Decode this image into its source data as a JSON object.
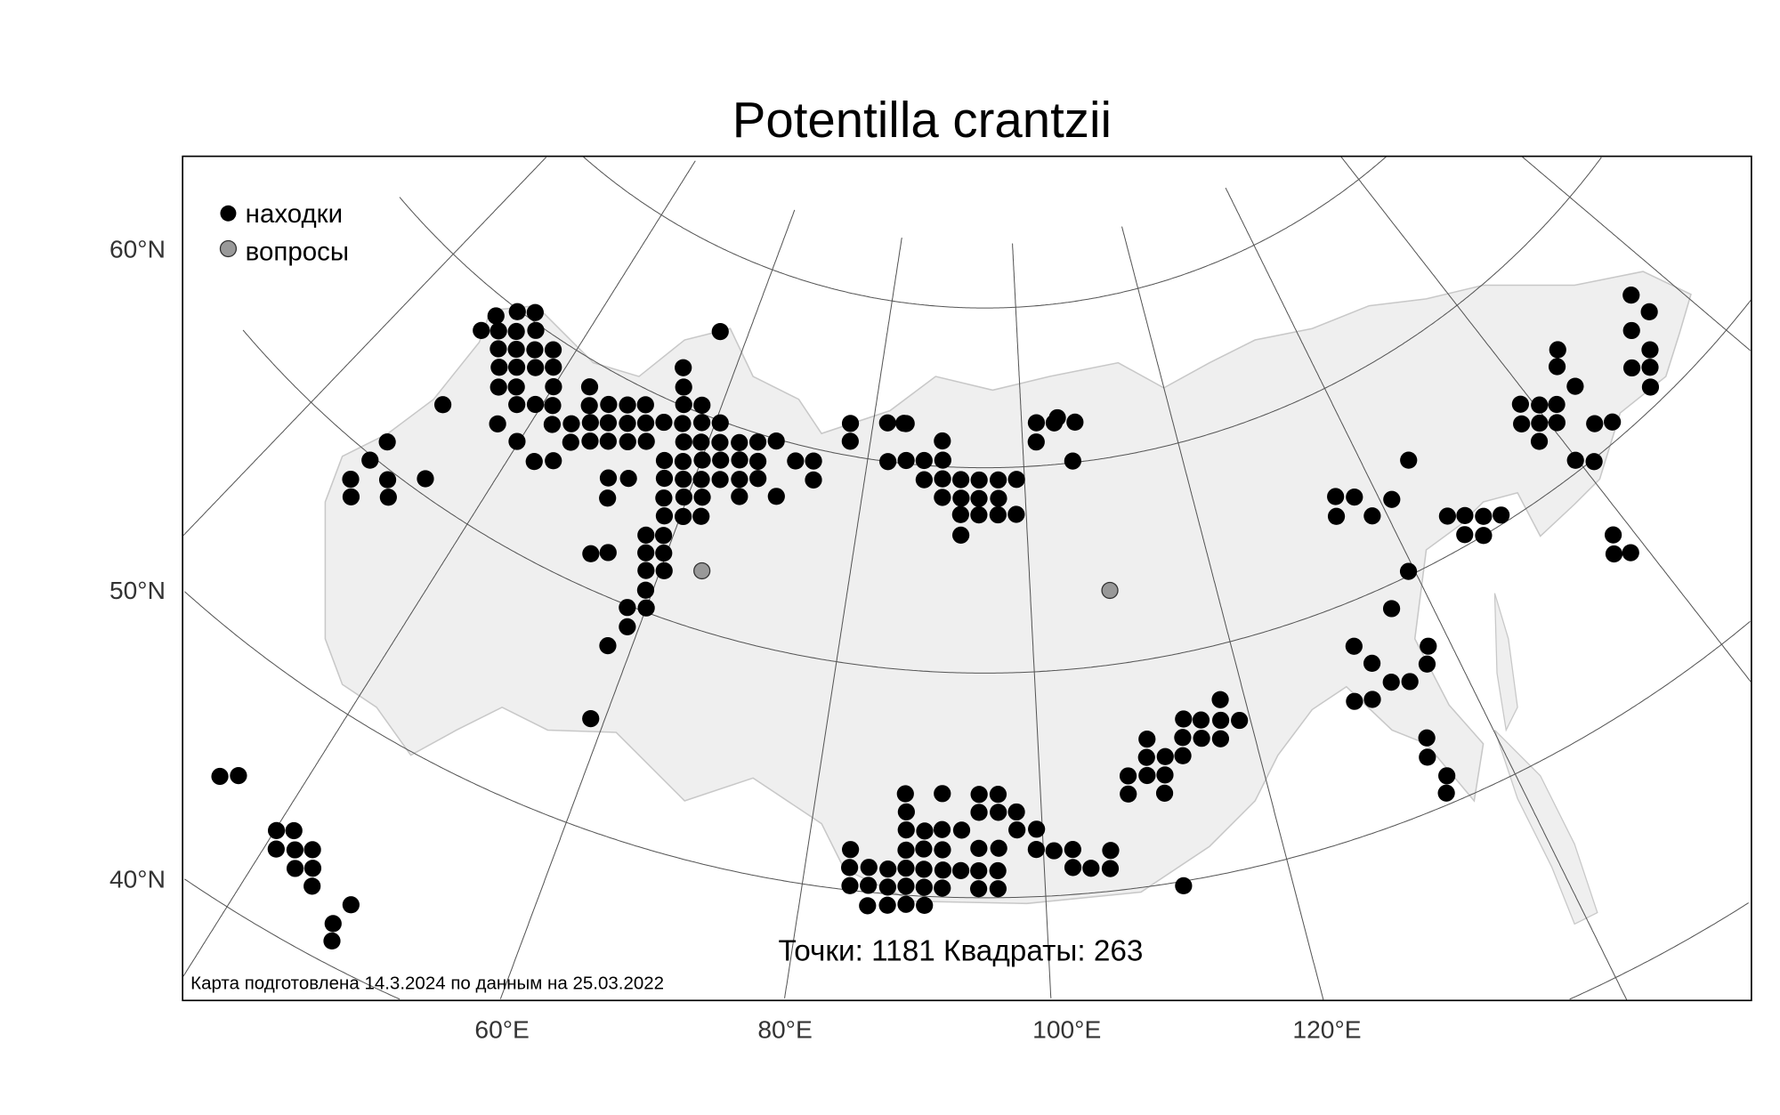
{
  "title": "Potentilla crantzii",
  "legend": {
    "found_label": "находки",
    "question_label": "вопросы",
    "found_color": "#000000",
    "question_color": "#999999"
  },
  "stats": "Точки: 1181 Квадраты: 263",
  "footer": "Карта подготовлена 14.3.2024 по данным на 25.03.2022",
  "axes": {
    "lat_labels": [
      "60°N",
      "50°N",
      "40°N"
    ],
    "lon_labels": [
      "60°E",
      "80°E",
      "100°E",
      "120°E"
    ]
  },
  "colors": {
    "land": "#efefef",
    "land_border": "#c8c8c8",
    "graticule": "#555555"
  },
  "graticule": {
    "meridians": [
      20,
      40,
      60,
      80,
      100,
      120,
      140,
      160,
      180
    ],
    "parallels": [
      40,
      50,
      60,
      70,
      80
    ]
  },
  "points": {
    "found": [
      [
        176.1,
        64.6
      ],
      [
        29.2,
        69.1
      ],
      [
        31.0,
        69.9
      ],
      [
        32.9,
        70.5
      ],
      [
        176.1,
        63.4
      ],
      [
        28.9,
        68.1
      ],
      [
        30.6,
        68.6
      ],
      [
        32.4,
        69.1
      ],
      [
        34.3,
        69.7
      ],
      [
        56.1,
        75.2
      ],
      [
        173.3,
        63.4
      ],
      [
        31.9,
        67.9
      ],
      [
        33.7,
        68.4
      ],
      [
        35.6,
        68.9
      ],
      [
        37.5,
        69.4
      ],
      [
        173.2,
        62.1
      ],
      [
        165.9,
        65.2
      ],
      [
        33.3,
        67.2
      ],
      [
        35.0,
        67.7
      ],
      [
        36.9,
        68.2
      ],
      [
        38.7,
        68.7
      ],
      [
        53.4,
        72.2
      ],
      [
        164.6,
        64.6
      ],
      [
        170.5,
        62.1
      ],
      [
        171.9,
        61.5
      ],
      [
        34.6,
        66.4
      ],
      [
        36.3,
        66.9
      ],
      [
        40.0,
        67.9
      ],
      [
        43.8,
        68.8
      ],
      [
        54.5,
        71.1
      ],
      [
        104.9,
        72.9
      ],
      [
        164.7,
        63.3
      ],
      [
        170.5,
        60.8
      ],
      [
        30.7,
        64.1
      ],
      [
        37.5,
        66.2
      ],
      [
        39.3,
        66.7
      ],
      [
        41.1,
        67.1
      ],
      [
        44.9,
        68.0
      ],
      [
        46.9,
        68.5
      ],
      [
        49.0,
        68.9
      ],
      [
        51.0,
        69.3
      ],
      [
        55.4,
        70.1
      ],
      [
        57.6,
        70.5
      ],
      [
        84.1,
        72.5
      ],
      [
        107.2,
        72.5
      ],
      [
        158.8,
        64.3
      ],
      [
        160.4,
        63.7
      ],
      [
        161.9,
        63.2
      ],
      [
        36.9,
        64.9
      ],
      [
        42.2,
        66.3
      ],
      [
        44.1,
        66.8
      ],
      [
        46.0,
        67.3
      ],
      [
        47.9,
        67.7
      ],
      [
        50.0,
        68.1
      ],
      [
        52.0,
        68.5
      ],
      [
        54.0,
        68.9
      ],
      [
        56.2,
        69.2
      ],
      [
        58.4,
        69.6
      ],
      [
        60.6,
        69.9
      ],
      [
        77.0,
        72.0
      ],
      [
        81.9,
        72.4
      ],
      [
        84.4,
        72.5
      ],
      [
        102.0,
        72.7
      ],
      [
        104.4,
        72.6
      ],
      [
        157.6,
        63.5
      ],
      [
        159.2,
        63.0
      ],
      [
        160.7,
        62.5
      ],
      [
        163.7,
        61.3
      ],
      [
        165.2,
        60.8
      ],
      [
        28.5,
        61.0
      ],
      [
        39.8,
        64.7
      ],
      [
        45.1,
        66.0
      ],
      [
        47.0,
        66.5
      ],
      [
        48.9,
        66.9
      ],
      [
        51.0,
        67.3
      ],
      [
        53.0,
        67.7
      ],
      [
        57.2,
        68.4
      ],
      [
        59.2,
        68.7
      ],
      [
        61.4,
        69.0
      ],
      [
        63.7,
        69.3
      ],
      [
        65.9,
        69.6
      ],
      [
        68.1,
        69.9
      ],
      [
        77.4,
        70.9
      ],
      [
        89.4,
        71.6
      ],
      [
        101.8,
        71.5
      ],
      [
        158.0,
        62.3
      ],
      [
        28.3,
        59.8
      ],
      [
        42.6,
        64.3
      ],
      [
        44.4,
        64.8
      ],
      [
        55.9,
        67.2
      ],
      [
        58.0,
        67.5
      ],
      [
        60.1,
        67.9
      ],
      [
        62.2,
        68.2
      ],
      [
        64.4,
        68.5
      ],
      [
        66.6,
        68.7
      ],
      [
        71.1,
        69.2
      ],
      [
        73.3,
        69.4
      ],
      [
        82.6,
        70.0
      ],
      [
        84.9,
        70.2
      ],
      [
        87.2,
        70.3
      ],
      [
        89.6,
        70.4
      ],
      [
        106.3,
        70.1
      ],
      [
        144.9,
        65.0
      ],
      [
        159.8,
        60.5
      ],
      [
        161.2,
        59.9
      ],
      [
        28.0,
        58.6
      ],
      [
        30.9,
        59.6
      ],
      [
        33.9,
        60.7
      ],
      [
        50.8,
        65.3
      ],
      [
        52.9,
        65.7
      ],
      [
        56.7,
        66.4
      ],
      [
        58.8,
        66.7
      ],
      [
        60.8,
        67.0
      ],
      [
        62.9,
        67.3
      ],
      [
        65.1,
        67.6
      ],
      [
        67.2,
        67.9
      ],
      [
        73.8,
        68.5
      ],
      [
        87.4,
        69.3
      ],
      [
        89.7,
        69.4
      ],
      [
        92.0,
        69.4
      ],
      [
        94.3,
        69.4
      ],
      [
        96.7,
        69.4
      ],
      [
        99.0,
        69.4
      ],
      [
        29.1,
        58.0
      ],
      [
        32.0,
        59.0
      ],
      [
        51.7,
        64.4
      ],
      [
        57.5,
        65.5
      ],
      [
        59.6,
        65.9
      ],
      [
        61.6,
        66.2
      ],
      [
        65.7,
        66.8
      ],
      [
        69.9,
        67.3
      ],
      [
        89.8,
        68.5
      ],
      [
        92.1,
        68.5
      ],
      [
        94.3,
        68.5
      ],
      [
        96.7,
        68.5
      ],
      [
        135.7,
        65.0
      ],
      [
        137.6,
        64.6
      ],
      [
        141.2,
        63.7
      ],
      [
        58.3,
        64.7
      ],
      [
        60.3,
        65.0
      ],
      [
        62.2,
        65.3
      ],
      [
        92.1,
        67.7
      ],
      [
        94.3,
        67.7
      ],
      [
        96.6,
        67.7
      ],
      [
        98.8,
        67.7
      ],
      [
        134.9,
        64.1
      ],
      [
        138.5,
        63.4
      ],
      [
        145.6,
        61.7
      ],
      [
        147.2,
        61.3
      ],
      [
        148.8,
        60.8
      ],
      [
        150.4,
        60.4
      ],
      [
        57.2,
        63.5
      ],
      [
        59.0,
        63.8
      ],
      [
        92.2,
        66.7
      ],
      [
        146.2,
        60.5
      ],
      [
        147.8,
        60.0
      ],
      [
        158.3,
        56.8
      ],
      [
        52.6,
        61.6
      ],
      [
        54.2,
        62.0
      ],
      [
        57.9,
        62.7
      ],
      [
        59.7,
        63.0
      ],
      [
        157.3,
        56.1
      ],
      [
        158.6,
        55.7
      ],
      [
        58.6,
        61.9
      ],
      [
        60.4,
        62.2
      ],
      [
        139.4,
        60.2
      ],
      [
        59.3,
        61.0
      ],
      [
        58.2,
        59.9
      ],
      [
        60.0,
        60.2
      ],
      [
        136.3,
        59.0
      ],
      [
        58.9,
        59.1
      ],
      [
        57.8,
        58.0
      ],
      [
        131.5,
        58.1
      ],
      [
        138.0,
        56.8
      ],
      [
        132.5,
        57.1
      ],
      [
        137.2,
        56.1
      ],
      [
        133.5,
        56.0
      ],
      [
        135.1,
        55.7
      ],
      [
        129.7,
        55.8
      ],
      [
        131.3,
        55.6
      ],
      [
        117.7,
        57.6
      ],
      [
        58.8,
        54.7
      ],
      [
        113.9,
        57.1
      ],
      [
        115.5,
        56.9
      ],
      [
        117.3,
        56.7
      ],
      [
        119.0,
        56.5
      ],
      [
        110.2,
        56.5
      ],
      [
        113.5,
        56.3
      ],
      [
        115.2,
        56.1
      ],
      [
        116.9,
        55.9
      ],
      [
        134.5,
        53.1
      ],
      [
        109.9,
        55.7
      ],
      [
        111.6,
        55.6
      ],
      [
        113.2,
        55.5
      ],
      [
        133.9,
        52.3
      ],
      [
        34.4,
        44.6
      ],
      [
        35.5,
        45.1
      ],
      [
        108.0,
        55.0
      ],
      [
        109.7,
        54.9
      ],
      [
        111.3,
        54.8
      ],
      [
        134.8,
        51.2
      ],
      [
        87.9,
        54.5
      ],
      [
        91.2,
        54.6
      ],
      [
        94.5,
        54.6
      ],
      [
        96.2,
        54.6
      ],
      [
        107.8,
        54.2
      ],
      [
        111.0,
        54.0
      ],
      [
        134.2,
        50.5
      ],
      [
        88.1,
        53.7
      ],
      [
        94.5,
        53.8
      ],
      [
        96.2,
        53.8
      ],
      [
        97.8,
        53.8
      ],
      [
        40.1,
        44.0
      ],
      [
        41.2,
        44.4
      ],
      [
        88.2,
        52.9
      ],
      [
        89.8,
        52.9
      ],
      [
        91.3,
        53.0
      ],
      [
        93.0,
        53.0
      ],
      [
        97.8,
        53.0
      ],
      [
        99.5,
        53.0
      ],
      [
        40.8,
        43.3
      ],
      [
        42.0,
        43.7
      ],
      [
        43.1,
        44.1
      ],
      [
        83.6,
        51.8
      ],
      [
        88.3,
        52.0
      ],
      [
        89.8,
        52.1
      ],
      [
        91.4,
        52.1
      ],
      [
        94.5,
        52.2
      ],
      [
        96.2,
        52.2
      ],
      [
        99.4,
        52.1
      ],
      [
        100.9,
        52.0
      ],
      [
        102.5,
        52.0
      ],
      [
        105.7,
        51.8
      ],
      [
        42.7,
        43.0
      ],
      [
        43.8,
        43.4
      ],
      [
        83.7,
        51.0
      ],
      [
        85.3,
        51.1
      ],
      [
        86.9,
        51.1
      ],
      [
        88.4,
        51.2
      ],
      [
        89.9,
        51.2
      ],
      [
        91.5,
        51.2
      ],
      [
        93.0,
        51.2
      ],
      [
        94.5,
        51.2
      ],
      [
        96.1,
        51.2
      ],
      [
        102.4,
        51.2
      ],
      [
        103.9,
        51.1
      ],
      [
        105.5,
        51.0
      ],
      [
        44.4,
        42.7
      ],
      [
        83.9,
        50.2
      ],
      [
        85.4,
        50.3
      ],
      [
        87.0,
        50.3
      ],
      [
        88.5,
        50.4
      ],
      [
        90.0,
        50.4
      ],
      [
        91.5,
        50.4
      ],
      [
        94.5,
        50.4
      ],
      [
        96.1,
        50.4
      ],
      [
        111.3,
        49.8
      ],
      [
        47.5,
        42.8
      ],
      [
        85.5,
        49.4
      ],
      [
        87.1,
        49.5
      ],
      [
        88.6,
        49.6
      ],
      [
        90.1,
        49.6
      ],
      [
        47.0,
        41.7
      ],
      [
        47.5,
        41.0
      ]
    ],
    "questions": [
      [
        64.2,
        62.8
      ],
      [
        108.7,
        63.6
      ]
    ]
  }
}
